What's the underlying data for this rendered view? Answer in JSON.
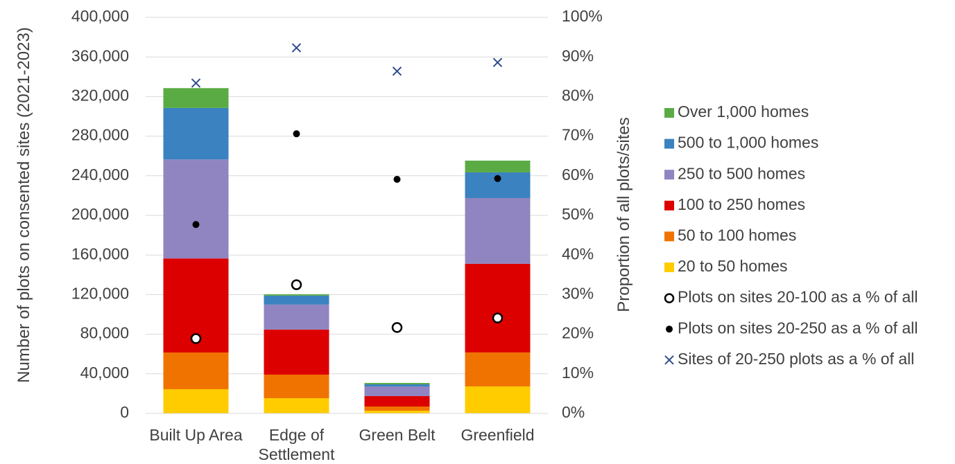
{
  "chart_data": {
    "type": "bar",
    "stacked": true,
    "categories": [
      "Built Up Area",
      "Edge of Settlement",
      "Green Belt",
      "Greenfield"
    ],
    "ylabel": "Number of plots on consented sites (2021-2023)",
    "y2label": "Proportion of all plots/sites",
    "ylim": [
      0,
      400000
    ],
    "yticks": [
      0,
      {
        "value": 40000,
        "label": "40,000"
      },
      {
        "value": 80000,
        "label": "80,000"
      },
      {
        "value": 120000,
        "label": "120,000"
      },
      {
        "value": 160000,
        "label": "160,000"
      },
      {
        "value": 200000,
        "label": "200,000"
      },
      {
        "value": 240000,
        "label": "240,000"
      },
      {
        "value": 280000,
        "label": "280,000"
      },
      {
        "value": 320000,
        "label": "320,000"
      },
      {
        "value": 360000,
        "label": "360,000"
      },
      {
        "value": 400000,
        "label": "400,000"
      }
    ],
    "y2lim": [
      0,
      100
    ],
    "y2ticks": [
      {
        "value": 0,
        "label": "0%"
      },
      {
        "value": 10,
        "label": "10%"
      },
      {
        "value": 20,
        "label": "20%"
      },
      {
        "value": 30,
        "label": "30%"
      },
      {
        "value": 40,
        "label": "40%"
      },
      {
        "value": 50,
        "label": "50%"
      },
      {
        "value": 60,
        "label": "60%"
      },
      {
        "value": 70,
        "label": "70%"
      },
      {
        "value": 80,
        "label": "80%"
      },
      {
        "value": 90,
        "label": "90%"
      },
      {
        "value": 100,
        "label": "100%"
      }
    ],
    "series": [
      {
        "name": "20 to 50 homes",
        "color": "#FFCC00",
        "values": [
          24500,
          15400,
          2800,
          27300
        ]
      },
      {
        "name": "50 to 100 homes",
        "color": "#F07300",
        "values": [
          37000,
          23800,
          4200,
          34300
        ]
      },
      {
        "name": "100 to 250 homes",
        "color": "#DC0000",
        "values": [
          95000,
          45500,
          10500,
          89500
        ]
      },
      {
        "name": "250 to 500 homes",
        "color": "#9085C0",
        "values": [
          100000,
          25200,
          9800,
          66400
        ]
      },
      {
        "name": "500 to 1,000 homes",
        "color": "#3A82C0",
        "values": [
          52000,
          9100,
          2100,
          25900
        ]
      },
      {
        "name": "Over 1,000 homes",
        "color": "#5AAB44",
        "values": [
          20000,
          1400,
          1400,
          11900
        ]
      },
      {
        "name": "Plots on sites 20-100 as a % of all",
        "axis": "y2",
        "marker": "open-circle",
        "color": "#000000",
        "values": [
          18.9,
          32.5,
          21.7,
          24.1
        ]
      },
      {
        "name": "Plots on sites 20-250 as a % of all",
        "axis": "y2",
        "marker": "dot",
        "color": "#000000",
        "values": [
          47.7,
          70.6,
          59.1,
          59.3
        ]
      },
      {
        "name": "Sites of 20-250 plots as a % of all",
        "axis": "y2",
        "marker": "x",
        "color": "#2F4B8C",
        "values": [
          83.4,
          92.3,
          86.4,
          88.6
        ]
      }
    ]
  }
}
